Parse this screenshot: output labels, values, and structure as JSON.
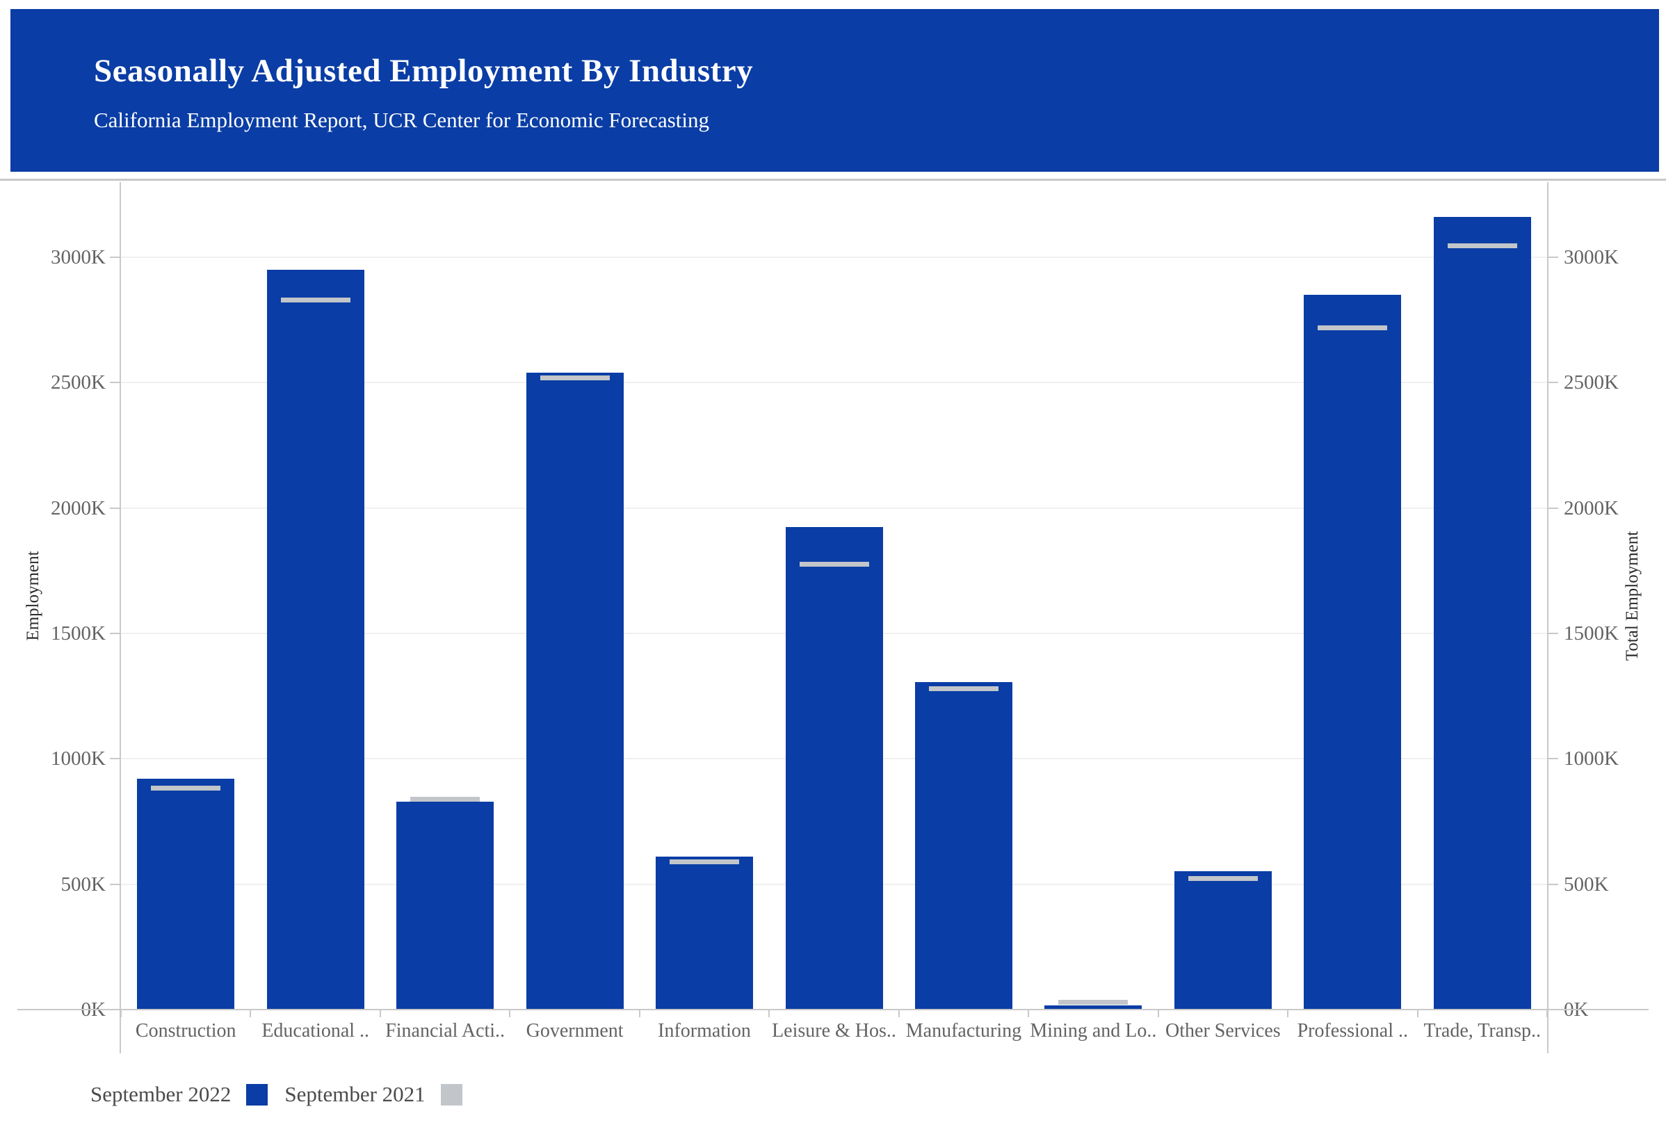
{
  "header": {
    "title": "Seasonally Adjusted Employment By Industry",
    "subtitle": "California Employment Report, UCR Center for Economic Forecasting",
    "background_color": "#0A3DA5",
    "text_color": "#FFFFFF"
  },
  "chart_data": {
    "type": "bar",
    "title": "Seasonally Adjusted Employment By Industry",
    "subtitle": "California Employment Report, UCR Center for Economic Forecasting",
    "unit": "thousands of jobs (K)",
    "categories": [
      "Construction",
      "Educational ..",
      "Financial Acti..",
      "Government",
      "Information",
      "Leisure & Hos..",
      "Manufacturing",
      "Mining and Lo..",
      "Other Services",
      "Professional ..",
      "Trade, Transp.."
    ],
    "series": [
      {
        "name": "September 2022",
        "mark": "bar",
        "color": "#0A3DA5",
        "values": [
          920,
          2950,
          830,
          2540,
          610,
          1925,
          1305,
          18,
          552,
          2850,
          3160
        ]
      },
      {
        "name": "September 2021",
        "mark": "dash",
        "color": "#C2C6CA",
        "values": [
          882,
          2830,
          838,
          2520,
          590,
          1775,
          1280,
          28,
          522,
          2720,
          3045
        ]
      }
    ],
    "ylabel_left": "Employment",
    "ylabel_right": "Total Employment",
    "ylim": [
      0,
      3300
    ],
    "y_ticks": [
      {
        "value": 0,
        "label": "0K"
      },
      {
        "value": 500,
        "label": "500K"
      },
      {
        "value": 1000,
        "label": "1000K"
      },
      {
        "value": 1500,
        "label": "1500K"
      },
      {
        "value": 2000,
        "label": "2000K"
      },
      {
        "value": 2500,
        "label": "2500K"
      },
      {
        "value": 3000,
        "label": "3000K"
      }
    ],
    "grid": true,
    "legend_position": "bottom-left"
  },
  "legend": {
    "items": [
      {
        "label": "September 2022",
        "color": "#0A3DA5"
      },
      {
        "label": "September 2021",
        "color": "#C2C6CA"
      }
    ]
  }
}
